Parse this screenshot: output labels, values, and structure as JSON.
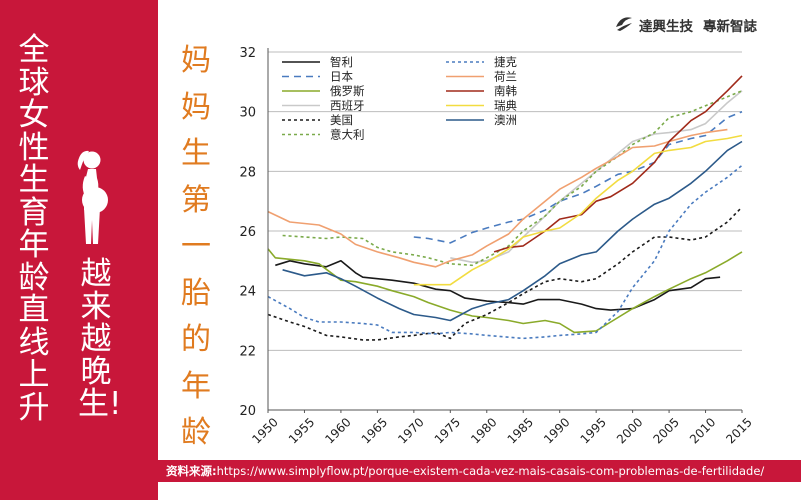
{
  "left_panel": {
    "headline_main": "全球女性生育年龄直线上升",
    "headline_sub": "越来越晚生!",
    "icon": "pregnant-woman-icon",
    "color": "#c8173a"
  },
  "vertical_title": "妈妈生第一胎的年龄",
  "logo": {
    "company": "達興生技",
    "slogan": "專新智誌",
    "icon": "logo-mark-icon"
  },
  "source": {
    "label": "资料来源:",
    "url": "https://www.simplyflow.pt/porque-existem-cada-vez-mais-casais-com-problemas-de-fertilidade/"
  },
  "chart_data": {
    "type": "line",
    "title": "妈妈生第一胎的年龄",
    "xlabel": "",
    "ylabel": "",
    "xlim": [
      1950,
      2015
    ],
    "ylim": [
      20,
      32
    ],
    "x_ticks": [
      1950,
      1955,
      1960,
      1965,
      1970,
      1975,
      1980,
      1985,
      1990,
      1995,
      2000,
      2005,
      2010,
      2015
    ],
    "y_ticks": [
      20,
      22,
      24,
      26,
      28,
      30,
      32
    ],
    "grid": "horizontal",
    "legend_position": "top-left",
    "series": [
      {
        "name": "智利",
        "color": "#1a1a1a",
        "dash": "solid",
        "points": [
          [
            1951,
            24.85
          ],
          [
            1953,
            25.0
          ],
          [
            1955,
            24.9
          ],
          [
            1958,
            24.8
          ],
          [
            1960,
            25.0
          ],
          [
            1962,
            24.6
          ],
          [
            1963,
            24.45
          ],
          [
            1965,
            24.4
          ],
          [
            1967,
            24.35
          ],
          [
            1970,
            24.25
          ],
          [
            1973,
            24.05
          ],
          [
            1975,
            24.0
          ],
          [
            1977,
            23.75
          ],
          [
            1980,
            23.65
          ],
          [
            1983,
            23.6
          ],
          [
            1985,
            23.55
          ],
          [
            1987,
            23.7
          ],
          [
            1990,
            23.7
          ],
          [
            1993,
            23.55
          ],
          [
            1995,
            23.4
          ],
          [
            1997,
            23.35
          ],
          [
            2000,
            23.4
          ],
          [
            2003,
            23.7
          ],
          [
            2005,
            24.0
          ],
          [
            2008,
            24.1
          ],
          [
            2010,
            24.4
          ],
          [
            2012,
            24.45
          ]
        ]
      },
      {
        "name": "日本",
        "color": "#4a7bbf",
        "dash": "dashed",
        "points": [
          [
            1970,
            25.8
          ],
          [
            1972,
            25.75
          ],
          [
            1975,
            25.6
          ],
          [
            1978,
            25.95
          ],
          [
            1980,
            26.1
          ],
          [
            1983,
            26.3
          ],
          [
            1985,
            26.4
          ],
          [
            1988,
            26.7
          ],
          [
            1990,
            27.0
          ],
          [
            1993,
            27.25
          ],
          [
            1995,
            27.5
          ],
          [
            1998,
            27.9
          ],
          [
            2000,
            28.0
          ],
          [
            2003,
            28.3
          ],
          [
            2005,
            28.9
          ],
          [
            2008,
            29.1
          ],
          [
            2010,
            29.2
          ],
          [
            2013,
            29.8
          ],
          [
            2015,
            30.0
          ]
        ]
      },
      {
        "name": "俄罗斯",
        "color": "#8aaa2a",
        "dash": "solid",
        "points": [
          [
            1950,
            25.4
          ],
          [
            1951,
            25.1
          ],
          [
            1955,
            25.0
          ],
          [
            1957,
            24.9
          ],
          [
            1960,
            24.35
          ],
          [
            1962,
            24.3
          ],
          [
            1965,
            24.15
          ],
          [
            1967,
            24.0
          ],
          [
            1970,
            23.8
          ],
          [
            1972,
            23.6
          ],
          [
            1975,
            23.35
          ],
          [
            1978,
            23.15
          ],
          [
            1980,
            23.1
          ],
          [
            1983,
            23.0
          ],
          [
            1985,
            22.9
          ],
          [
            1988,
            23.0
          ],
          [
            1990,
            22.9
          ],
          [
            1992,
            22.6
          ],
          [
            1995,
            22.65
          ],
          [
            1997,
            22.95
          ],
          [
            2000,
            23.4
          ],
          [
            2003,
            23.8
          ],
          [
            2005,
            24.05
          ],
          [
            2008,
            24.4
          ],
          [
            2010,
            24.6
          ],
          [
            2013,
            25.0
          ],
          [
            2015,
            25.3
          ]
        ]
      },
      {
        "name": "西班牙",
        "color": "#c9c9c9",
        "dash": "solid",
        "points": [
          [
            1975,
            25.1
          ],
          [
            1978,
            24.95
          ],
          [
            1980,
            25.0
          ],
          [
            1983,
            25.3
          ],
          [
            1985,
            25.8
          ],
          [
            1988,
            26.5
          ],
          [
            1990,
            27.0
          ],
          [
            1993,
            27.6
          ],
          [
            1995,
            28.0
          ],
          [
            1998,
            28.6
          ],
          [
            2000,
            29.0
          ],
          [
            2003,
            29.25
          ],
          [
            2005,
            29.3
          ],
          [
            2008,
            29.4
          ],
          [
            2010,
            29.6
          ],
          [
            2013,
            30.3
          ],
          [
            2015,
            30.7
          ]
        ]
      },
      {
        "name": "美国",
        "color": "#1a1a1a",
        "dash": "dotted",
        "points": [
          [
            1950,
            23.2
          ],
          [
            1953,
            22.95
          ],
          [
            1955,
            22.8
          ],
          [
            1958,
            22.5
          ],
          [
            1960,
            22.45
          ],
          [
            1963,
            22.35
          ],
          [
            1965,
            22.35
          ],
          [
            1968,
            22.45
          ],
          [
            1970,
            22.5
          ],
          [
            1973,
            22.6
          ],
          [
            1975,
            22.4
          ],
          [
            1977,
            22.9
          ],
          [
            1980,
            23.2
          ],
          [
            1983,
            23.6
          ],
          [
            1985,
            23.9
          ],
          [
            1988,
            24.3
          ],
          [
            1990,
            24.4
          ],
          [
            1993,
            24.3
          ],
          [
            1995,
            24.4
          ],
          [
            1998,
            24.9
          ],
          [
            2000,
            25.3
          ],
          [
            2003,
            25.8
          ],
          [
            2005,
            25.8
          ],
          [
            2008,
            25.7
          ],
          [
            2010,
            25.8
          ],
          [
            2013,
            26.3
          ],
          [
            2015,
            26.8
          ]
        ]
      },
      {
        "name": "意大利",
        "color": "#7aaa4a",
        "dash": "dotted",
        "points": [
          [
            1952,
            25.85
          ],
          [
            1955,
            25.8
          ],
          [
            1958,
            25.75
          ],
          [
            1960,
            25.8
          ],
          [
            1963,
            25.75
          ],
          [
            1965,
            25.45
          ],
          [
            1967,
            25.3
          ],
          [
            1970,
            25.2
          ],
          [
            1972,
            25.1
          ],
          [
            1975,
            24.9
          ],
          [
            1978,
            24.85
          ],
          [
            1980,
            25.1
          ],
          [
            1983,
            25.5
          ],
          [
            1985,
            26.0
          ],
          [
            1988,
            26.5
          ],
          [
            1990,
            27.0
          ],
          [
            1993,
            27.5
          ],
          [
            1995,
            28.0
          ],
          [
            1998,
            28.5
          ],
          [
            2000,
            28.9
          ],
          [
            2003,
            29.3
          ],
          [
            2005,
            29.8
          ],
          [
            2008,
            30.0
          ],
          [
            2010,
            30.2
          ],
          [
            2013,
            30.5
          ],
          [
            2015,
            30.7
          ]
        ]
      },
      {
        "name": "捷克",
        "color": "#4a7bbf",
        "dash": "dotted",
        "points": [
          [
            1950,
            23.8
          ],
          [
            1953,
            23.4
          ],
          [
            1955,
            23.1
          ],
          [
            1957,
            22.95
          ],
          [
            1960,
            22.95
          ],
          [
            1963,
            22.9
          ],
          [
            1965,
            22.85
          ],
          [
            1967,
            22.6
          ],
          [
            1970,
            22.6
          ],
          [
            1973,
            22.55
          ],
          [
            1975,
            22.6
          ],
          [
            1978,
            22.55
          ],
          [
            1980,
            22.5
          ],
          [
            1985,
            22.4
          ],
          [
            1988,
            22.45
          ],
          [
            1990,
            22.5
          ],
          [
            1993,
            22.55
          ],
          [
            1995,
            22.6
          ],
          [
            1998,
            23.3
          ],
          [
            2000,
            24.1
          ],
          [
            2003,
            25.0
          ],
          [
            2005,
            26.0
          ],
          [
            2008,
            26.9
          ],
          [
            2010,
            27.3
          ],
          [
            2013,
            27.8
          ],
          [
            2015,
            28.2
          ]
        ]
      },
      {
        "name": "荷兰",
        "color": "#f0a070",
        "dash": "solid",
        "points": [
          [
            1950,
            26.65
          ],
          [
            1953,
            26.3
          ],
          [
            1955,
            26.25
          ],
          [
            1957,
            26.2
          ],
          [
            1960,
            25.9
          ],
          [
            1962,
            25.55
          ],
          [
            1965,
            25.3
          ],
          [
            1968,
            25.1
          ],
          [
            1970,
            24.95
          ],
          [
            1973,
            24.8
          ],
          [
            1975,
            25.0
          ],
          [
            1978,
            25.2
          ],
          [
            1980,
            25.5
          ],
          [
            1983,
            25.9
          ],
          [
            1985,
            26.4
          ],
          [
            1988,
            27.0
          ],
          [
            1990,
            27.4
          ],
          [
            1993,
            27.8
          ],
          [
            1995,
            28.1
          ],
          [
            1998,
            28.5
          ],
          [
            2000,
            28.8
          ],
          [
            2003,
            28.85
          ],
          [
            2005,
            29.0
          ],
          [
            2008,
            29.2
          ],
          [
            2010,
            29.3
          ],
          [
            2013,
            29.4
          ]
        ]
      },
      {
        "name": "南韩",
        "color": "#a02a1a",
        "dash": "solid",
        "points": [
          [
            1981,
            25.3
          ],
          [
            1983,
            25.45
          ],
          [
            1985,
            25.5
          ],
          [
            1988,
            26.0
          ],
          [
            1990,
            26.4
          ],
          [
            1993,
            26.55
          ],
          [
            1995,
            27.0
          ],
          [
            1997,
            27.15
          ],
          [
            2000,
            27.6
          ],
          [
            2003,
            28.3
          ],
          [
            2005,
            29.0
          ],
          [
            2008,
            29.7
          ],
          [
            2010,
            30.0
          ],
          [
            2013,
            30.7
          ],
          [
            2015,
            31.2
          ]
        ]
      },
      {
        "name": "瑞典",
        "color": "#f2dc40",
        "dash": "solid",
        "points": [
          [
            1970,
            24.2
          ],
          [
            1972,
            24.2
          ],
          [
            1975,
            24.2
          ],
          [
            1978,
            24.7
          ],
          [
            1980,
            24.95
          ],
          [
            1983,
            25.4
          ],
          [
            1985,
            25.8
          ],
          [
            1988,
            26.0
          ],
          [
            1990,
            26.1
          ],
          [
            1993,
            26.6
          ],
          [
            1995,
            27.1
          ],
          [
            1998,
            27.7
          ],
          [
            2000,
            28.0
          ],
          [
            2003,
            28.6
          ],
          [
            2005,
            28.7
          ],
          [
            2008,
            28.8
          ],
          [
            2010,
            29.0
          ],
          [
            2013,
            29.1
          ],
          [
            2015,
            29.2
          ]
        ]
      },
      {
        "name": "澳洲",
        "color": "#2c5a8a",
        "dash": "solid",
        "points": [
          [
            1952,
            24.7
          ],
          [
            1955,
            24.5
          ],
          [
            1958,
            24.6
          ],
          [
            1960,
            24.4
          ],
          [
            1962,
            24.15
          ],
          [
            1965,
            23.75
          ],
          [
            1968,
            23.4
          ],
          [
            1970,
            23.2
          ],
          [
            1973,
            23.1
          ],
          [
            1975,
            23.0
          ],
          [
            1978,
            23.4
          ],
          [
            1980,
            23.55
          ],
          [
            1983,
            23.7
          ],
          [
            1985,
            24.0
          ],
          [
            1988,
            24.5
          ],
          [
            1990,
            24.9
          ],
          [
            1993,
            25.2
          ],
          [
            1995,
            25.3
          ],
          [
            1998,
            26.0
          ],
          [
            2000,
            26.4
          ],
          [
            2003,
            26.9
          ],
          [
            2005,
            27.1
          ],
          [
            2008,
            27.6
          ],
          [
            2010,
            28.0
          ],
          [
            2013,
            28.7
          ],
          [
            2015,
            29.0
          ]
        ]
      }
    ]
  }
}
